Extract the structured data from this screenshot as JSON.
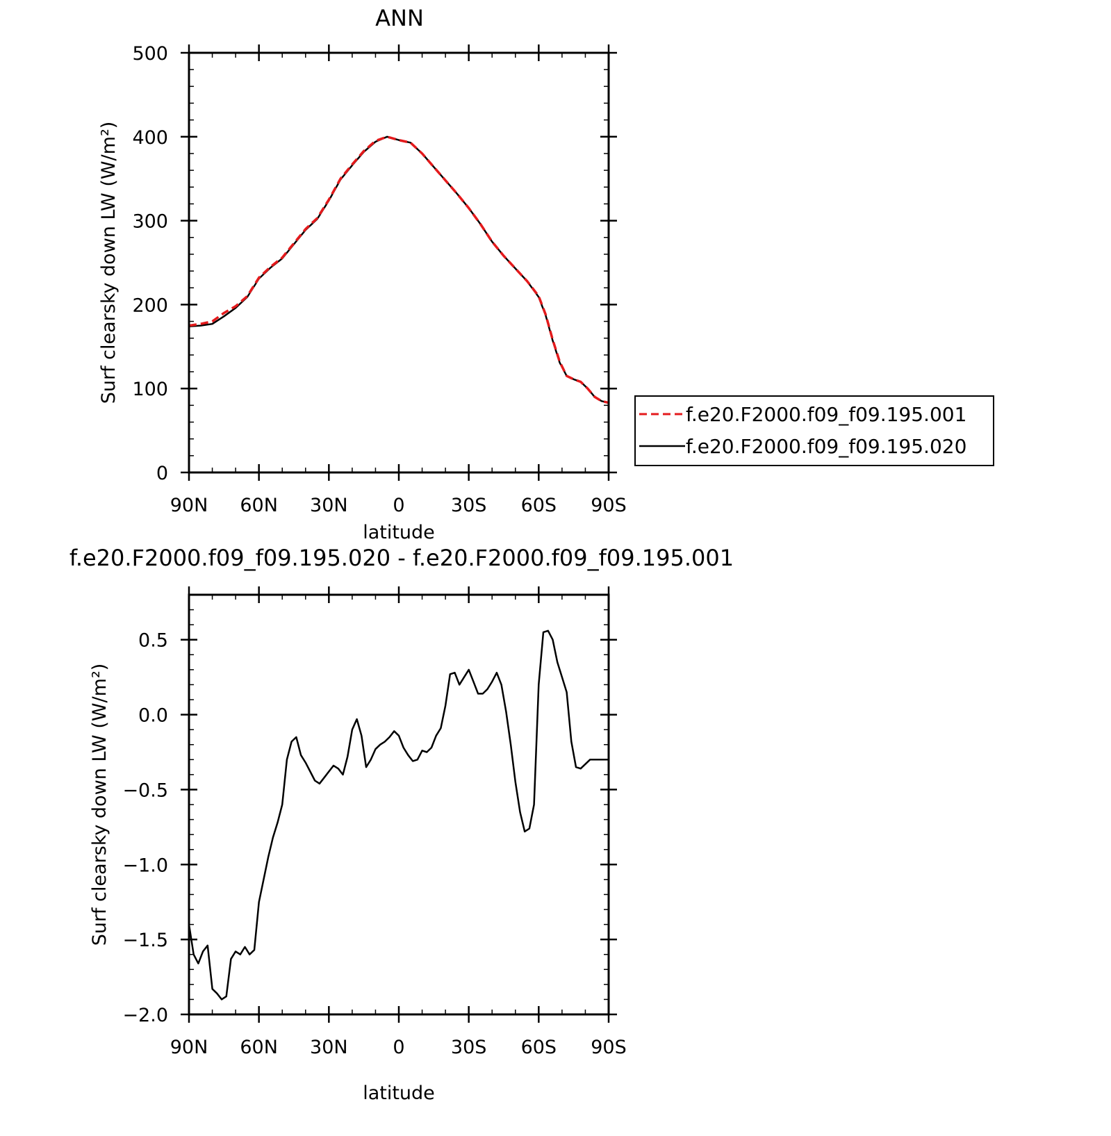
{
  "colors": {
    "series_dashed": "#e41a1c",
    "series_solid": "#000000",
    "axis": "#000000",
    "background": "#ffffff"
  },
  "chart_data": [
    {
      "type": "line",
      "title": "ANN",
      "xlabel": "latitude",
      "ylabel": "Surf clearsky down LW (W/m²)",
      "ylim": [
        0,
        500
      ],
      "xlim": [
        90,
        -90
      ],
      "x_ticks": [
        {
          "value": 90,
          "label": "90N"
        },
        {
          "value": 60,
          "label": "60N"
        },
        {
          "value": 30,
          "label": "30N"
        },
        {
          "value": 0,
          "label": "0"
        },
        {
          "value": -30,
          "label": "30S"
        },
        {
          "value": -60,
          "label": "60S"
        },
        {
          "value": -90,
          "label": "90S"
        }
      ],
      "y_ticks": [
        {
          "value": 0,
          "label": "0"
        },
        {
          "value": 100,
          "label": "100"
        },
        {
          "value": 200,
          "label": "200"
        },
        {
          "value": 300,
          "label": "300"
        },
        {
          "value": 400,
          "label": "400"
        },
        {
          "value": 500,
          "label": "500"
        }
      ],
      "legend": {
        "placement": "right"
      },
      "series": [
        {
          "name": "f.e20.F2000.f09_f09.195.001",
          "style": "dashed",
          "color": "#e41a1c",
          "x": [
            90,
            85,
            80,
            75,
            70,
            65,
            60,
            55,
            50,
            45,
            40,
            35,
            30,
            25,
            20,
            15,
            10,
            5,
            0,
            -5,
            -10,
            -15,
            -20,
            -25,
            -30,
            -35,
            -40,
            -45,
            -50,
            -55,
            -60,
            -63,
            -66,
            -69,
            -72,
            -75,
            -78,
            -81,
            -84,
            -87,
            -90
          ],
          "y": [
            175,
            177,
            180,
            190,
            198,
            210,
            232,
            245,
            256,
            273,
            290,
            303,
            325,
            350,
            367,
            383,
            395,
            400,
            396,
            393,
            380,
            364,
            348,
            332,
            315,
            296,
            275,
            258,
            243,
            228,
            210,
            188,
            158,
            132,
            115,
            111,
            108,
            100,
            90,
            85,
            83
          ]
        },
        {
          "name": "f.e20.F2000.f09_f09.195.020",
          "style": "solid",
          "color": "#000000",
          "x": [
            90,
            85,
            80,
            75,
            70,
            65,
            60,
            55,
            50,
            45,
            40,
            35,
            30,
            25,
            20,
            15,
            10,
            5,
            0,
            -5,
            -10,
            -15,
            -20,
            -25,
            -30,
            -35,
            -40,
            -45,
            -50,
            -55,
            -60,
            -63,
            -66,
            -69,
            -72,
            -75,
            -78,
            -81,
            -84,
            -87,
            -90
          ],
          "y": [
            174,
            175,
            177,
            186,
            196,
            209,
            231,
            244,
            255,
            272,
            289,
            302,
            324,
            349,
            366,
            382,
            394,
            400,
            396,
            393,
            380,
            364,
            348,
            332,
            315,
            296,
            275,
            258,
            243,
            228,
            209,
            187,
            157,
            131,
            115,
            111,
            108,
            100,
            90,
            85,
            83
          ]
        }
      ]
    },
    {
      "type": "line",
      "title": "f.e20.F2000.f09_f09.195.020 - f.e20.F2000.f09_f09.195.001",
      "xlabel": "latitude",
      "ylabel": "Surf clearsky down LW (W/m²)",
      "ylim": [
        -2.0,
        0.8
      ],
      "xlim": [
        90,
        -90
      ],
      "x_ticks": [
        {
          "value": 90,
          "label": "90N"
        },
        {
          "value": 60,
          "label": "60N"
        },
        {
          "value": 30,
          "label": "30N"
        },
        {
          "value": 0,
          "label": "0"
        },
        {
          "value": -30,
          "label": "30S"
        },
        {
          "value": -60,
          "label": "60S"
        },
        {
          "value": -90,
          "label": "90S"
        }
      ],
      "y_ticks": [
        {
          "value": -2.0,
          "label": "−2.0"
        },
        {
          "value": -1.5,
          "label": "−1.5"
        },
        {
          "value": -1.0,
          "label": "−1.0"
        },
        {
          "value": -0.5,
          "label": "−0.5"
        },
        {
          "value": 0.0,
          "label": "0.0"
        },
        {
          "value": 0.5,
          "label": "0.5"
        }
      ],
      "series": [
        {
          "style": "solid",
          "color": "#000000",
          "x": [
            90,
            88,
            86,
            84,
            82,
            80,
            78,
            76,
            74,
            72,
            70,
            68,
            66,
            64,
            62,
            60,
            58,
            56,
            54,
            52,
            50,
            48,
            46,
            44,
            42,
            40,
            38,
            36,
            34,
            32,
            30,
            28,
            26,
            24,
            22,
            20,
            18,
            16,
            14,
            12,
            10,
            8,
            6,
            4,
            2,
            0,
            -2,
            -4,
            -6,
            -8,
            -10,
            -12,
            -14,
            -16,
            -18,
            -20,
            -22,
            -24,
            -26,
            -28,
            -30,
            -32,
            -34,
            -36,
            -38,
            -40,
            -42,
            -44,
            -46,
            -48,
            -50,
            -52,
            -54,
            -56,
            -58,
            -60,
            -62,
            -64,
            -66,
            -68,
            -70,
            -72,
            -74,
            -76,
            -78,
            -80,
            -82,
            -84,
            -86,
            -88,
            -90
          ],
          "y": [
            -1.4,
            -1.6,
            -1.66,
            -1.58,
            -1.54,
            -1.83,
            -1.86,
            -1.9,
            -1.88,
            -1.63,
            -1.58,
            -1.6,
            -1.55,
            -1.6,
            -1.57,
            -1.25,
            -1.1,
            -0.95,
            -0.82,
            -0.72,
            -0.6,
            -0.3,
            -0.18,
            -0.15,
            -0.27,
            -0.32,
            -0.38,
            -0.44,
            -0.46,
            -0.42,
            -0.38,
            -0.34,
            -0.36,
            -0.4,
            -0.28,
            -0.1,
            -0.03,
            -0.14,
            -0.35,
            -0.3,
            -0.23,
            -0.2,
            -0.18,
            -0.15,
            -0.11,
            -0.14,
            -0.22,
            -0.27,
            -0.31,
            -0.3,
            -0.24,
            -0.25,
            -0.22,
            -0.14,
            -0.09,
            0.06,
            0.27,
            0.28,
            0.2,
            0.25,
            0.3,
            0.22,
            0.14,
            0.14,
            0.17,
            0.22,
            0.28,
            0.2,
            0.02,
            -0.2,
            -0.45,
            -0.65,
            -0.78,
            -0.76,
            -0.6,
            0.2,
            0.55,
            0.56,
            0.5,
            0.35,
            0.25,
            0.15,
            -0.18,
            -0.35,
            -0.36,
            -0.33,
            -0.3,
            -0.3,
            -0.3,
            -0.3,
            -0.3
          ]
        }
      ]
    }
  ]
}
